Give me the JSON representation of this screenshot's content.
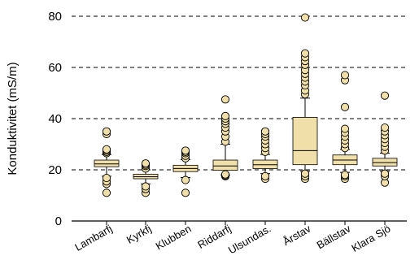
{
  "chart_data": {
    "type": "boxplot",
    "title": "",
    "xlabel": "",
    "ylabel": "Konduktivitet (mS/m)",
    "ylim": [
      0,
      80
    ],
    "yticks": [
      0,
      20,
      40,
      60,
      80
    ],
    "grid": "horizontal dashed at ticks",
    "legend": "none",
    "box_color": "#f0dfa8",
    "outlier_color": "#f0dfa8",
    "edge_color": "#000000",
    "categories": [
      "Lambarfj",
      "Kyrkfj",
      "Klubben",
      "Riddarfj",
      "Ulsundas.",
      "Årstav",
      "Bällstav",
      "Klara Sjö"
    ],
    "boxes": [
      {
        "name": "Lambarfj",
        "whisker_low": 17.5,
        "q1": 21.2,
        "median": 22.3,
        "q3": 23.8,
        "whisker_high": 26.0,
        "outliers": [
          11.0,
          14.5,
          15.5,
          16.8,
          26.5,
          27.0,
          27.5,
          28.0,
          34.0,
          35.0
        ]
      },
      {
        "name": "Kyrkfj",
        "whisker_low": 14.5,
        "q1": 16.5,
        "median": 17.3,
        "q3": 18.3,
        "whisker_high": 20.0,
        "outliers": [
          11.0,
          12.5,
          13.5,
          20.5,
          21.5,
          22.0,
          22.5
        ]
      },
      {
        "name": "Klubben",
        "whisker_low": 17.0,
        "q1": 19.3,
        "median": 20.5,
        "q3": 21.8,
        "whisker_high": 24.0,
        "outliers": [
          11.0,
          16.0,
          24.5,
          25.5,
          26.5,
          27.0,
          27.5
        ]
      },
      {
        "name": "Riddarfj",
        "whisker_low": 18.0,
        "q1": 19.8,
        "median": 21.5,
        "q3": 23.8,
        "whisker_high": 30.0,
        "outliers": [
          17.5,
          17.8,
          18.2,
          31.0,
          33.0,
          35.0,
          36.5,
          38.0,
          39.0,
          40.0,
          41.0,
          47.5
        ]
      },
      {
        "name": "Ulsundas.",
        "whisker_low": 18.5,
        "q1": 20.5,
        "median": 22.0,
        "q3": 23.8,
        "whisker_high": 26.0,
        "outliers": [
          16.5,
          17.5,
          27.0,
          28.5,
          30.0,
          31.5,
          33.0,
          34.0,
          35.0
        ]
      },
      {
        "name": "Årstav",
        "whisker_low": 19.5,
        "q1": 22.0,
        "median": 27.5,
        "q3": 40.5,
        "whisker_high": 48.0,
        "outliers": [
          16.5,
          17.5,
          18.5,
          49.5,
          51.0,
          53.0,
          54.5,
          56.0,
          57.5,
          59.0,
          61.0,
          62.5,
          64.0,
          65.5,
          79.5
        ]
      },
      {
        "name": "Bällstav",
        "whisker_low": 19.0,
        "q1": 22.0,
        "median": 23.8,
        "q3": 25.8,
        "whisker_high": 28.0,
        "outliers": [
          16.5,
          17.5,
          18.0,
          28.5,
          30.0,
          31.5,
          33.0,
          34.5,
          36.0,
          44.5,
          55.0,
          57.0
        ]
      },
      {
        "name": "Klara Sjö",
        "whisker_low": 19.5,
        "q1": 21.5,
        "median": 22.8,
        "q3": 24.5,
        "whisker_high": 26.5,
        "outliers": [
          15.0,
          17.5,
          18.5,
          27.5,
          29.0,
          30.5,
          32.0,
          33.5,
          35.0,
          36.5,
          49.0
        ]
      }
    ]
  }
}
